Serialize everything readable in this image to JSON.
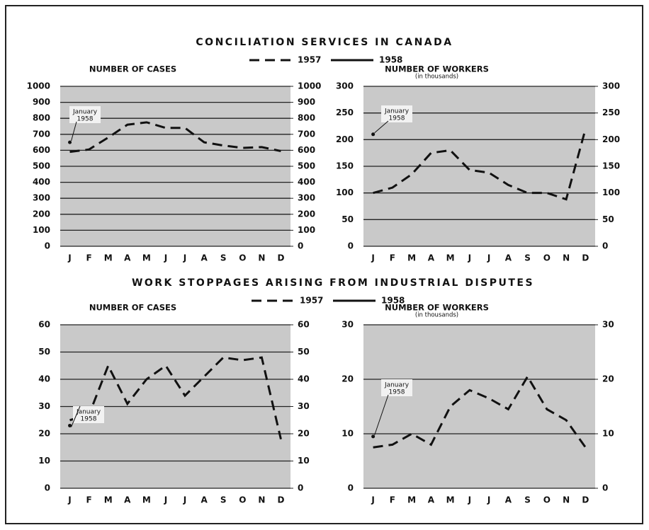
{
  "sections": [
    {
      "title": "CONCILIATION SERVICES IN CANADA"
    },
    {
      "title": "WORK STOPPAGES ARISING FROM INDUSTRIAL DISPUTES"
    }
  ],
  "chart_data": [
    {
      "type": "line",
      "title": "NUMBER OF CASES",
      "categories": [
        "J",
        "F",
        "M",
        "A",
        "M",
        "J",
        "J",
        "A",
        "S",
        "O",
        "N",
        "D"
      ],
      "series": [
        {
          "name": "1957",
          "style": "dashed",
          "color": "#111111",
          "values": [
            590,
            605,
            680,
            760,
            775,
            740,
            740,
            650,
            630,
            615,
            620,
            595
          ]
        },
        {
          "name": "1958",
          "style": "solid",
          "color": "#111111",
          "values": [
            650,
            null,
            null,
            null,
            null,
            null,
            null,
            null,
            null,
            null,
            null,
            null
          ]
        }
      ],
      "annotation": [
        "January",
        "1958"
      ],
      "ylim": [
        0,
        1000
      ],
      "yticks": [
        0,
        100,
        200,
        300,
        400,
        500,
        600,
        700,
        800,
        900,
        1000
      ],
      "y2lim": [
        0,
        1000
      ],
      "y2ticks": [
        0,
        100,
        200,
        300,
        400,
        500,
        600,
        700,
        800,
        900,
        1000
      ],
      "grid": true
    },
    {
      "type": "line",
      "title": "NUMBER OF WORKERS",
      "subtitle": "(in thousands)",
      "categories": [
        "J",
        "F",
        "M",
        "A",
        "M",
        "J",
        "J",
        "A",
        "S",
        "O",
        "N",
        "D"
      ],
      "series": [
        {
          "name": "1957",
          "style": "dashed",
          "color": "#111111",
          "values": [
            100,
            110,
            135,
            175,
            180,
            143,
            138,
            115,
            100,
            100,
            88,
            220
          ]
        },
        {
          "name": "1958",
          "style": "solid",
          "color": "#111111",
          "values": [
            210,
            null,
            null,
            null,
            null,
            null,
            null,
            null,
            null,
            null,
            null,
            null
          ]
        }
      ],
      "annotation": [
        "January",
        "1958"
      ],
      "ylim": [
        0,
        300
      ],
      "yticks": [
        0,
        50,
        100,
        150,
        200,
        250,
        300
      ],
      "y2lim": [
        0,
        300
      ],
      "y2ticks": [
        0,
        50,
        100,
        150,
        200,
        250,
        300
      ],
      "grid": true
    },
    {
      "type": "line",
      "title": "NUMBER OF CASES",
      "categories": [
        "J",
        "F",
        "M",
        "A",
        "M",
        "J",
        "J",
        "A",
        "S",
        "O",
        "N",
        "D"
      ],
      "series": [
        {
          "name": "1957",
          "style": "dashed",
          "color": "#111111",
          "values": [
            25,
            27,
            45,
            31,
            40,
            45,
            34,
            41,
            48,
            47,
            48,
            18
          ]
        },
        {
          "name": "1958",
          "style": "solid",
          "color": "#111111",
          "values": [
            23,
            null,
            null,
            null,
            null,
            null,
            null,
            null,
            null,
            null,
            null,
            null
          ]
        }
      ],
      "annotation": [
        "January",
        "1958"
      ],
      "ylim": [
        0,
        60
      ],
      "yticks": [
        0,
        10,
        20,
        30,
        40,
        50,
        60
      ],
      "y2lim": [
        0,
        60
      ],
      "y2ticks": [
        0,
        10,
        20,
        30,
        40,
        50,
        60
      ],
      "grid": true
    },
    {
      "type": "line",
      "title": "NUMBER OF WORKERS",
      "subtitle": "(in thousands)",
      "categories": [
        "J",
        "F",
        "M",
        "A",
        "M",
        "J",
        "J",
        "A",
        "S",
        "O",
        "N",
        "D"
      ],
      "series": [
        {
          "name": "1957",
          "style": "dashed",
          "color": "#111111",
          "values": [
            7.5,
            8,
            10,
            8,
            15,
            18,
            16.5,
            14.5,
            20.5,
            14.5,
            12.5,
            7.5
          ]
        },
        {
          "name": "1958",
          "style": "solid",
          "color": "#111111",
          "values": [
            9.5,
            null,
            null,
            null,
            null,
            null,
            null,
            null,
            null,
            null,
            null,
            null
          ]
        }
      ],
      "annotation": [
        "January",
        "1958"
      ],
      "ylim": [
        0,
        30
      ],
      "yticks": [
        0,
        10,
        20,
        30
      ],
      "y2lim": [
        0,
        30
      ],
      "y2ticks": [
        0,
        10,
        20,
        30
      ],
      "grid": true
    }
  ]
}
